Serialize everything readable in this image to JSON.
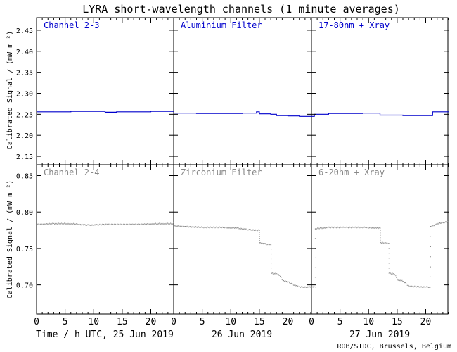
{
  "chart_data": {
    "type": "line",
    "title": "LYRA short-wavelength channels (1 minute averages)",
    "ylabel": "Calibrated Signal / (mW m⁻²)",
    "xlabel_day1": "Time / h UTC, 25 Jun 2019",
    "xlabel_day2": "26 Jun 2019",
    "xlabel_day3": "27 Jun 2019",
    "credit": "ROB/SIDC, Brussels, Belgium",
    "x_ticks": [
      "0",
      "5",
      "10",
      "15",
      "20"
    ],
    "x_range_hours": [
      0,
      24
    ],
    "colors": {
      "top_row": "#0000cc",
      "bottom_row": "#888888",
      "axes": "#000000"
    },
    "rows": [
      {
        "ylim": [
          2.13,
          2.48
        ],
        "y_ticks": [
          "2.15",
          "2.20",
          "2.25",
          "2.30",
          "2.35",
          "2.40",
          "2.45"
        ],
        "y_tick_values": [
          2.15,
          2.2,
          2.25,
          2.3,
          2.35,
          2.4,
          2.45
        ],
        "style": "line",
        "panels": [
          {
            "label": "Channel 2-3",
            "points": [
              [
                0,
                2.256
              ],
              [
                3,
                2.256
              ],
              [
                6,
                2.257
              ],
              [
                9,
                2.257
              ],
              [
                11,
                2.257
              ],
              [
                12,
                2.255
              ],
              [
                14,
                2.256
              ],
              [
                17,
                2.256
              ],
              [
                20,
                2.257
              ],
              [
                24,
                2.257
              ]
            ]
          },
          {
            "label": "Aluminium Filter",
            "points": [
              [
                0,
                2.253
              ],
              [
                4,
                2.252
              ],
              [
                8,
                2.252
              ],
              [
                12,
                2.253
              ],
              [
                14.5,
                2.256
              ],
              [
                15,
                2.251
              ],
              [
                17,
                2.25
              ],
              [
                18,
                2.247
              ],
              [
                20,
                2.246
              ],
              [
                22,
                2.245
              ],
              [
                24,
                2.246
              ]
            ]
          },
          {
            "label": "17-80nm + Xray",
            "points": [
              [
                0,
                2.245
              ],
              [
                0.5,
                2.25
              ],
              [
                3,
                2.252
              ],
              [
                6,
                2.252
              ],
              [
                9,
                2.253
              ],
              [
                11.5,
                2.253
              ],
              [
                12,
                2.248
              ],
              [
                15,
                2.248
              ],
              [
                16,
                2.247
              ],
              [
                20,
                2.247
              ],
              [
                21,
                2.247
              ],
              [
                21.2,
                2.256
              ],
              [
                24,
                2.256
              ]
            ]
          }
        ]
      },
      {
        "ylim": [
          0.66,
          0.865
        ],
        "y_ticks": [
          "0.70",
          "0.75",
          "0.80",
          "0.85"
        ],
        "y_tick_values": [
          0.7,
          0.75,
          0.8,
          0.85
        ],
        "style": "dots",
        "panels": [
          {
            "label": "Channel 2-4",
            "points": [
              [
                0,
                0.783
              ],
              [
                3,
                0.784
              ],
              [
                6,
                0.784
              ],
              [
                9,
                0.782
              ],
              [
                12,
                0.783
              ],
              [
                15,
                0.783
              ],
              [
                18,
                0.783
              ],
              [
                21,
                0.784
              ],
              [
                24,
                0.784
              ]
            ]
          },
          {
            "label": "Zirconium Filter",
            "points": [
              [
                0,
                0.781
              ],
              [
                2,
                0.78
              ],
              [
                5,
                0.779
              ],
              [
                8,
                0.779
              ],
              [
                11,
                0.778
              ],
              [
                13,
                0.776
              ],
              [
                14.5,
                0.775
              ],
              [
                15,
                0.758
              ],
              [
                16,
                0.756
              ],
              [
                16.8,
                0.755
              ],
              [
                17,
                0.716
              ],
              [
                18,
                0.715
              ],
              [
                18.7,
                0.712
              ],
              [
                19,
                0.706
              ],
              [
                20,
                0.704
              ],
              [
                21,
                0.7
              ],
              [
                22,
                0.697
              ],
              [
                24,
                0.697
              ]
            ]
          },
          {
            "label": "6-20nm + Xray",
            "points": [
              [
                0,
                0.697
              ],
              [
                0.5,
                0.697
              ],
              [
                0.6,
                0.777
              ],
              [
                3,
                0.779
              ],
              [
                6,
                0.779
              ],
              [
                9,
                0.779
              ],
              [
                11.5,
                0.778
              ],
              [
                12,
                0.758
              ],
              [
                13,
                0.757
              ],
              [
                13.5,
                0.716
              ],
              [
                14.5,
                0.715
              ],
              [
                15,
                0.707
              ],
              [
                16,
                0.705
              ],
              [
                17,
                0.698
              ],
              [
                20,
                0.697
              ],
              [
                20.6,
                0.697
              ],
              [
                20.8,
                0.78
              ],
              [
                22,
                0.784
              ],
              [
                24,
                0.787
              ]
            ]
          }
        ]
      }
    ]
  }
}
